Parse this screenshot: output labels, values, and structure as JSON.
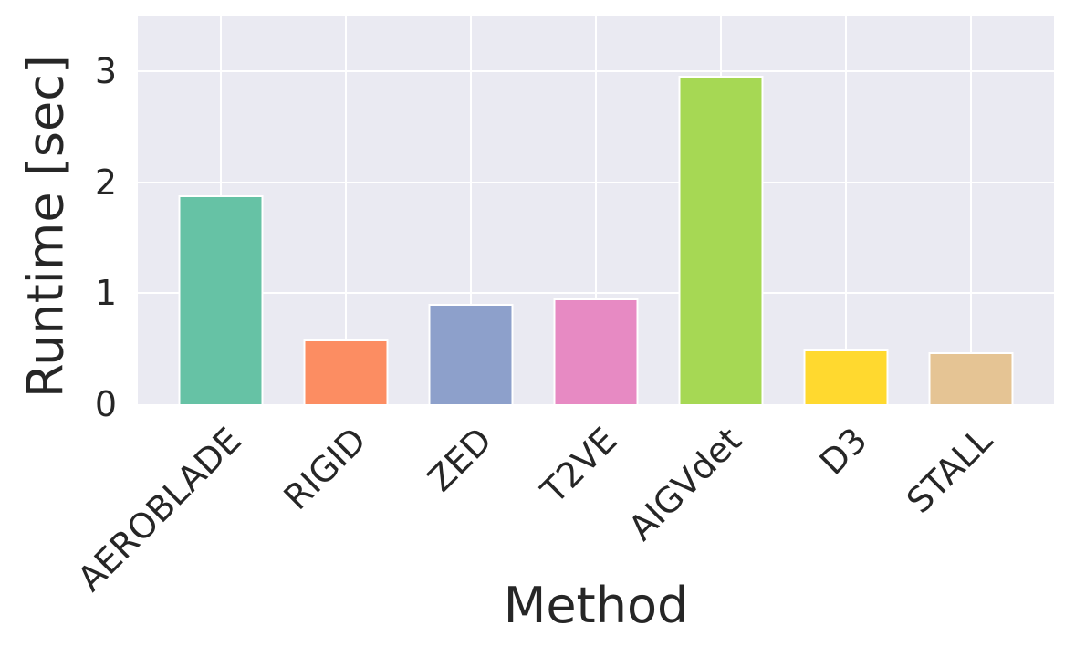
{
  "chart_data": {
    "type": "bar",
    "title": "",
    "xlabel": "Method",
    "ylabel": "Runtime [sec]",
    "categories": [
      "AEROBLADE",
      "RIGID",
      "ZED",
      "T2VE",
      "AIGVdet",
      "D3",
      "STALL"
    ],
    "values": [
      1.88,
      0.58,
      0.9,
      0.95,
      2.96,
      0.49,
      0.47
    ],
    "bar_colors": [
      "#66c2a5",
      "#fc8d62",
      "#8da0cb",
      "#e78ac3",
      "#a6d854",
      "#ffd92f",
      "#e5c494"
    ],
    "ylim": [
      0,
      3.5
    ],
    "yticks": [
      0,
      1,
      2,
      3
    ],
    "grid": "on",
    "legend": "none",
    "style": {
      "plot_background": "#eaeaf2",
      "grid_color": "#ffffff",
      "bar_edge_color": "#ffffff",
      "text_color": "#262626",
      "figure_background": "#ffffff"
    }
  }
}
